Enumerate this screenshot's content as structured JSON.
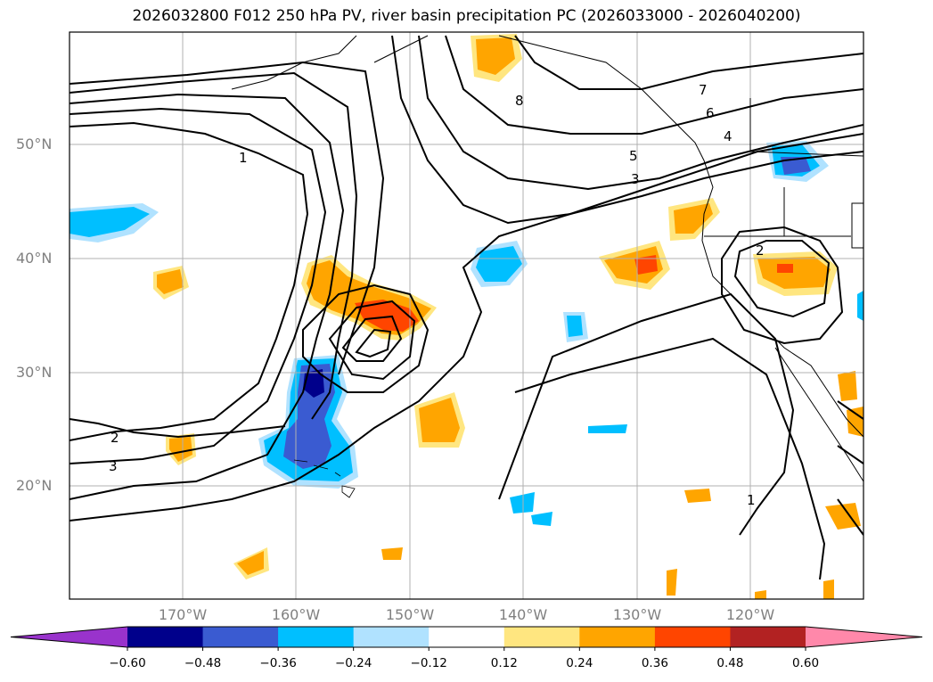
{
  "title": "2026032800 F012 250 hPa PV, river basin precipitation PC (2026033000 - 2026040200)",
  "lat_labels": [
    "50°N",
    "40°N",
    "30°N",
    "20°N"
  ],
  "lon_labels": [
    "170°W",
    "160°W",
    "150°W",
    "140°W",
    "130°W",
    "120°W"
  ],
  "colorbar": {
    "ticks": [
      "−0.60",
      "−0.48",
      "−0.36",
      "−0.24",
      "−0.12",
      "0.12",
      "0.24",
      "0.36",
      "0.48",
      "0.60"
    ],
    "colors": [
      "#9933cc",
      "#00008b",
      "#3a5bd1",
      "#00bfff",
      "#b0e2ff",
      "#ffffff",
      "#ffe680",
      "#ffa500",
      "#ff4500",
      "#b22222",
      "#ff88aa"
    ]
  },
  "contour_labels": [
    "1",
    "2",
    "3",
    "4",
    "5",
    "6",
    "7",
    "8",
    "3",
    "2",
    "1"
  ]
}
